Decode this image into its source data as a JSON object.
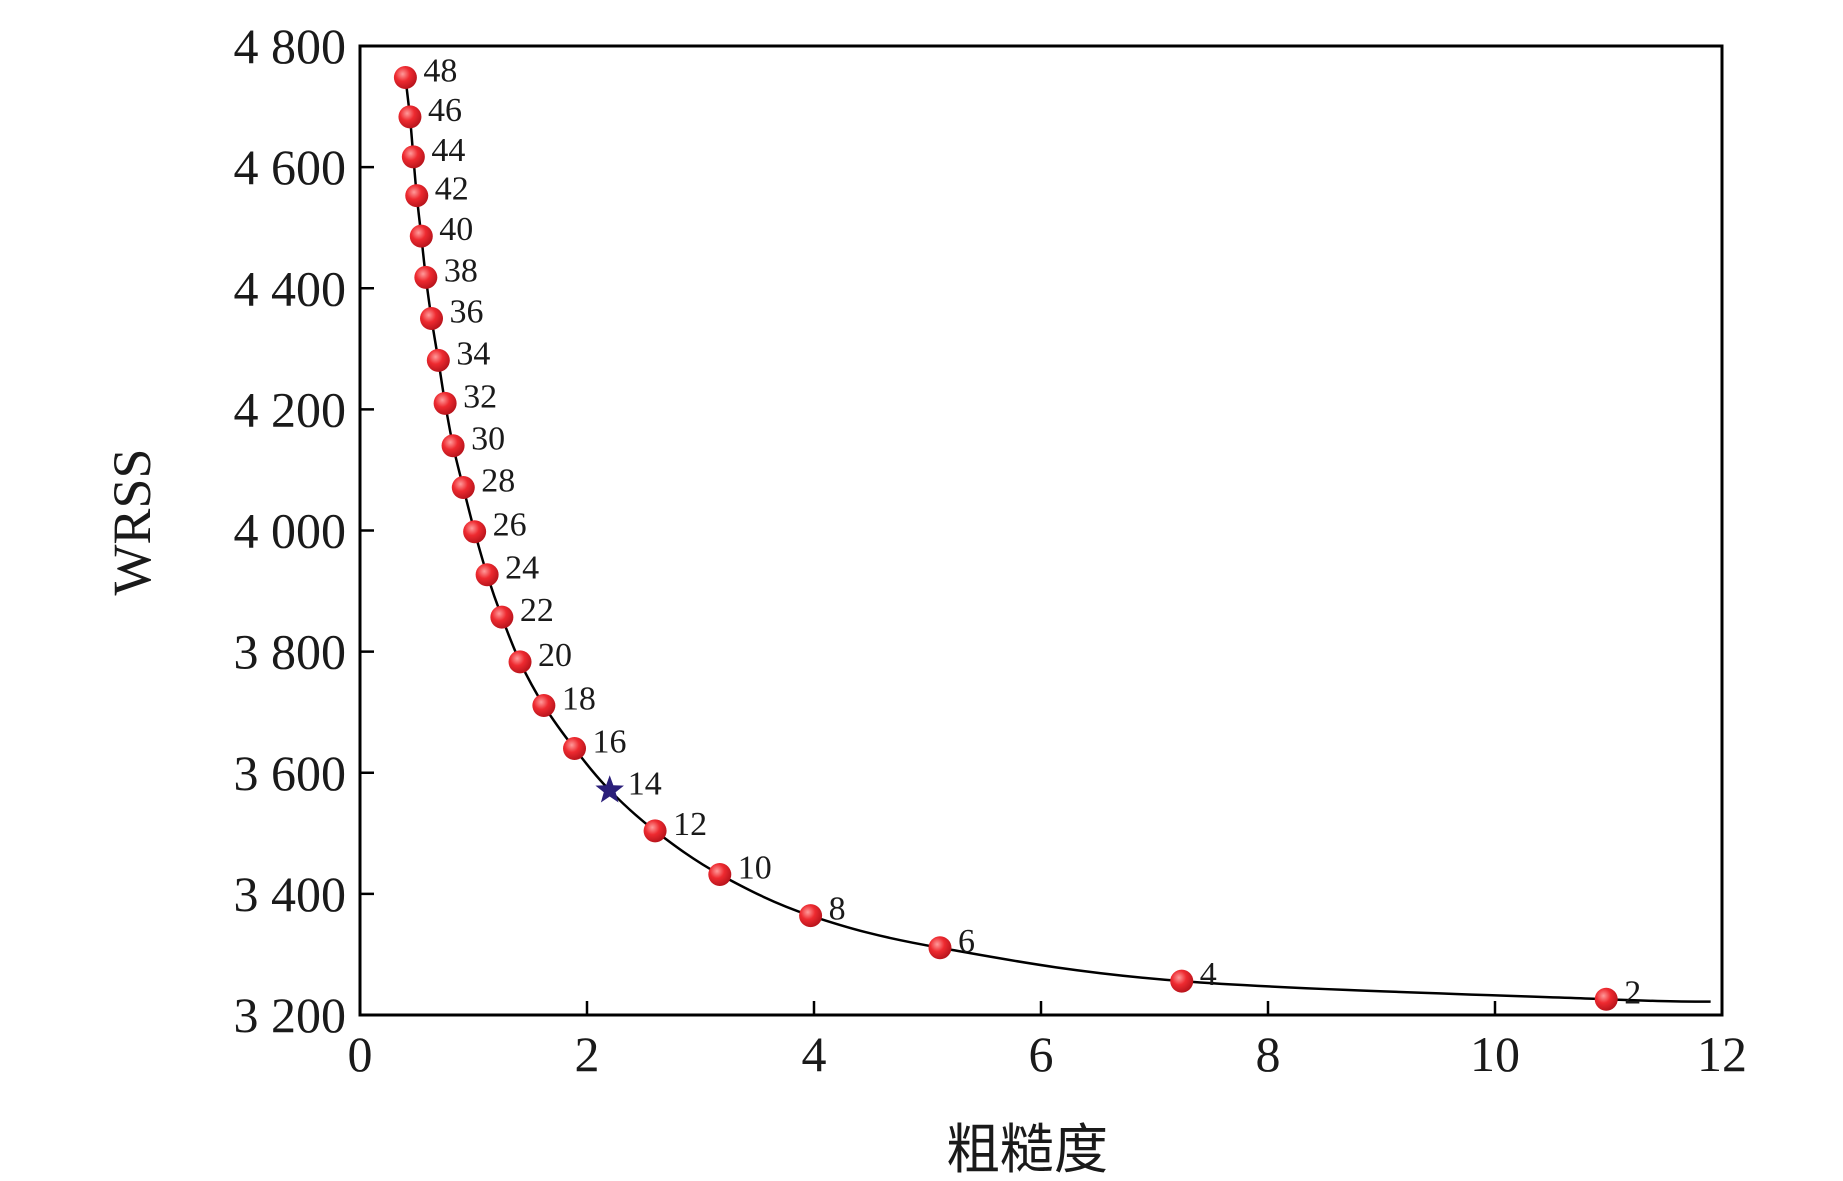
{
  "chart_data": {
    "type": "scatter",
    "title": "",
    "xlabel": "粗糙度",
    "ylabel": "WRSS",
    "xlim": [
      0,
      12
    ],
    "ylim": [
      3200,
      4800
    ],
    "x_ticks": [
      0,
      2,
      4,
      6,
      8,
      10,
      12
    ],
    "y_ticks": [
      3200,
      3400,
      3600,
      3800,
      4000,
      4200,
      4400,
      4600,
      4800
    ],
    "x_tick_labels": [
      "0",
      "2",
      "4",
      "6",
      "8",
      "10",
      "12"
    ],
    "y_tick_labels": [
      "3 200",
      "3 400",
      "3 600",
      "3 800",
      "4 000",
      "4 200",
      "4 400",
      "4 600",
      "4 800"
    ],
    "grid": false,
    "colors": {
      "point": "#e8222c",
      "highlight": "#2b1f7a",
      "curve": "#000000"
    },
    "highlight_label": "14",
    "series": [
      {
        "points": [
          {
            "label": "48",
            "x": 0.4,
            "y": 4748
          },
          {
            "label": "46",
            "x": 0.44,
            "y": 4683
          },
          {
            "label": "44",
            "x": 0.47,
            "y": 4617
          },
          {
            "label": "42",
            "x": 0.5,
            "y": 4553
          },
          {
            "label": "40",
            "x": 0.54,
            "y": 4486
          },
          {
            "label": "38",
            "x": 0.58,
            "y": 4418
          },
          {
            "label": "36",
            "x": 0.63,
            "y": 4350
          },
          {
            "label": "34",
            "x": 0.69,
            "y": 4281
          },
          {
            "label": "32",
            "x": 0.75,
            "y": 4210
          },
          {
            "label": "30",
            "x": 0.82,
            "y": 4140
          },
          {
            "label": "28",
            "x": 0.91,
            "y": 4071
          },
          {
            "label": "26",
            "x": 1.01,
            "y": 3998
          },
          {
            "label": "24",
            "x": 1.12,
            "y": 3927
          },
          {
            "label": "22",
            "x": 1.25,
            "y": 3857
          },
          {
            "label": "20",
            "x": 1.41,
            "y": 3783
          },
          {
            "label": "18",
            "x": 1.62,
            "y": 3711
          },
          {
            "label": "16",
            "x": 1.89,
            "y": 3640
          },
          {
            "label": "14",
            "x": 2.2,
            "y": 3571
          },
          {
            "label": "12",
            "x": 2.6,
            "y": 3504
          },
          {
            "label": "10",
            "x": 3.17,
            "y": 3432
          },
          {
            "label": "8",
            "x": 3.97,
            "y": 3364
          },
          {
            "label": "6",
            "x": 5.11,
            "y": 3311
          },
          {
            "label": "4",
            "x": 7.24,
            "y": 3256
          },
          {
            "label": "2",
            "x": 10.98,
            "y": 3226
          }
        ]
      }
    ]
  }
}
